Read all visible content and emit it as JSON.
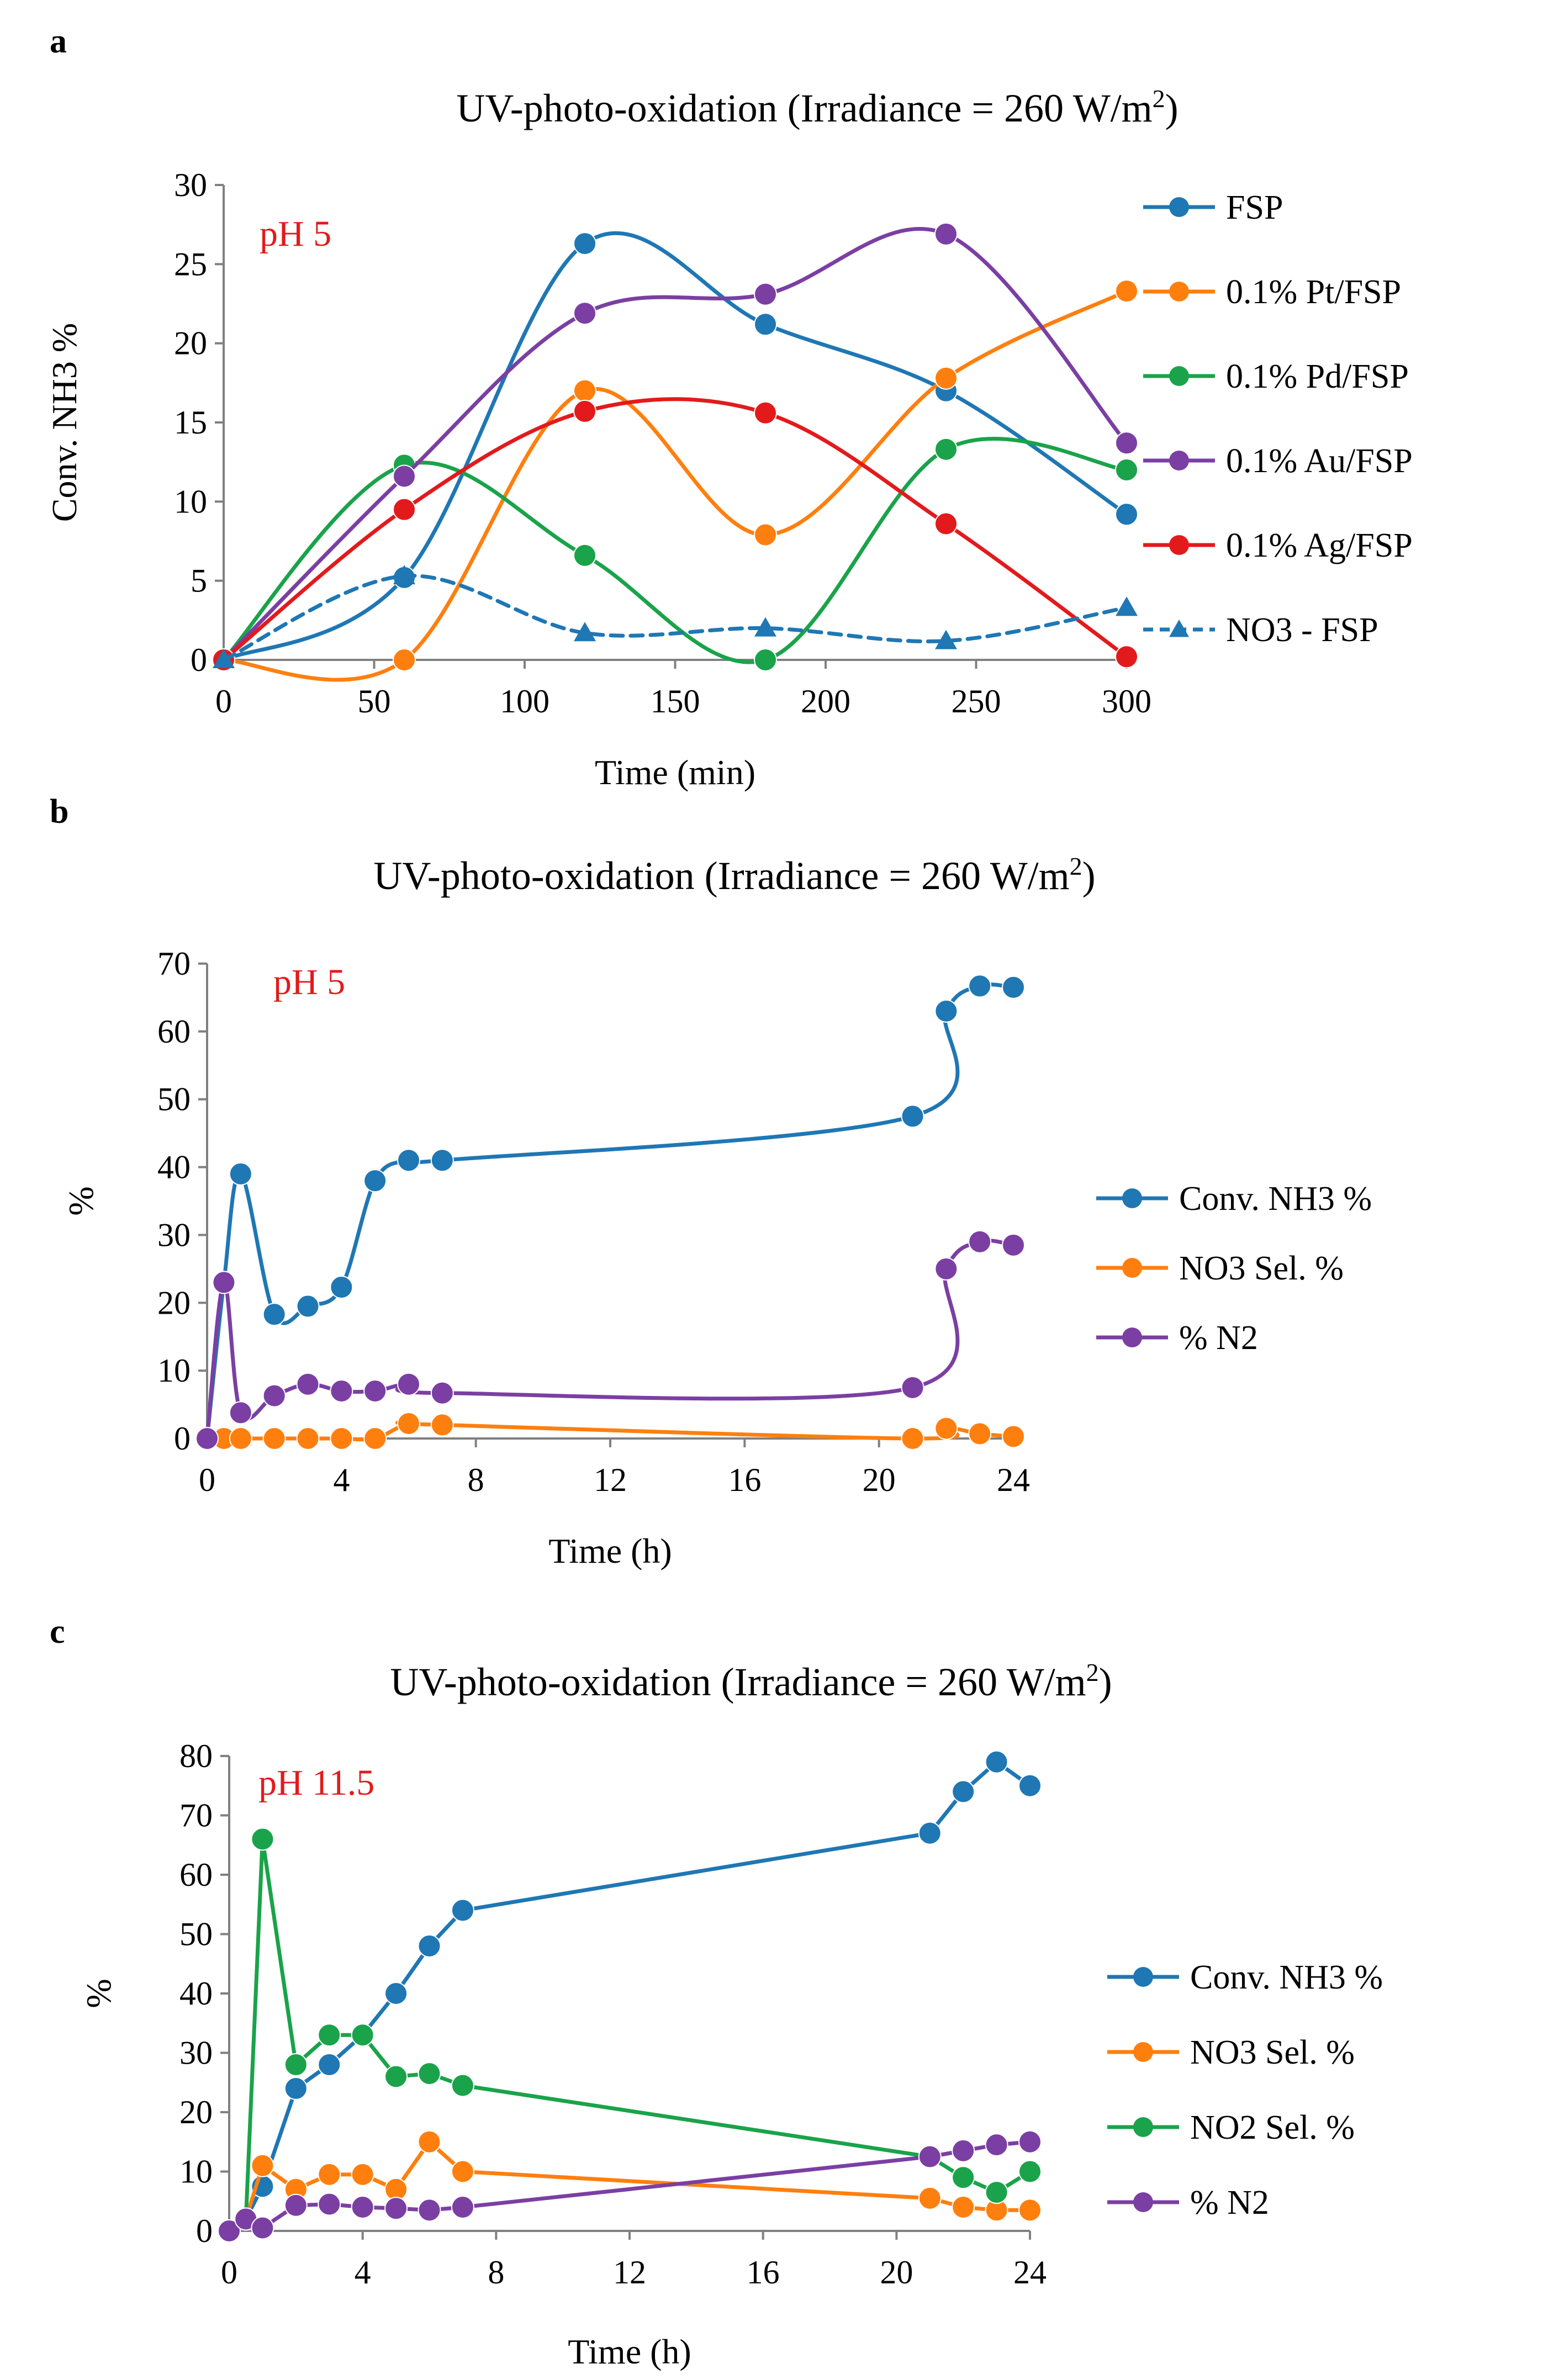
{
  "colors": {
    "blue": "#1f77b4",
    "orange": "#ff7f0e",
    "green": "#1aa34a",
    "purple": "#7b3fa3",
    "red": "#e31a1c",
    "axis": "#808080",
    "pH_label": "#e31a1c"
  },
  "chart_data": [
    {
      "panel": "a",
      "type": "line",
      "title_main": "UV-photo-oxidation (Irradiance = 260 W/m",
      "title_sup": "2",
      "title_end": ")",
      "annotation": "pH 5",
      "xlabel": "Time (min)",
      "ylabel": "Conv. NH3 %",
      "xlim": [
        0,
        300
      ],
      "ylim": [
        0,
        30
      ],
      "xticks": [
        0,
        50,
        100,
        150,
        200,
        250,
        300
      ],
      "yticks": [
        0,
        5,
        10,
        15,
        20,
        25,
        30
      ],
      "x": [
        0,
        60,
        120,
        180,
        240,
        300
      ],
      "legend_position": "right",
      "series": [
        {
          "name": "FSP",
          "color": "blue",
          "marker": "circle",
          "dashed": false,
          "values": [
            0,
            5.2,
            26.3,
            21.2,
            17.0,
            9.2
          ]
        },
        {
          "name": "0.1% Pt/FSP",
          "color": "orange",
          "marker": "circle",
          "dashed": false,
          "values": [
            0,
            0,
            17.0,
            7.9,
            17.8,
            23.3
          ]
        },
        {
          "name": "0.1% Pd/FSP",
          "color": "green",
          "marker": "circle",
          "dashed": false,
          "values": [
            0,
            12.3,
            6.6,
            0,
            13.3,
            12.0
          ]
        },
        {
          "name": "0.1% Au/FSP",
          "color": "purple",
          "marker": "circle",
          "dashed": false,
          "values": [
            0,
            11.6,
            21.9,
            23.1,
            26.9,
            13.7
          ]
        },
        {
          "name": "0.1% Ag/FSP",
          "color": "red",
          "marker": "circle",
          "dashed": false,
          "values": [
            0,
            9.5,
            15.7,
            15.6,
            8.6,
            0.2
          ]
        },
        {
          "name": "NO3 - FSP",
          "color": "blue",
          "marker": "triangle",
          "dashed": true,
          "values": [
            0,
            5.3,
            1.7,
            2.0,
            1.2,
            3.3
          ]
        }
      ]
    },
    {
      "panel": "b",
      "type": "line",
      "title_main": "UV-photo-oxidation (Irradiance = 260 W/m",
      "title_sup": "2",
      "title_end": ")",
      "annotation": "pH 5",
      "xlabel": "Time (h)",
      "ylabel": "%",
      "xlim": [
        0,
        24
      ],
      "ylim": [
        0,
        70
      ],
      "xticks": [
        0,
        4,
        8,
        12,
        16,
        20,
        24
      ],
      "yticks": [
        0,
        10,
        20,
        30,
        40,
        50,
        60,
        70
      ],
      "x": [
        0,
        0.5,
        1,
        2,
        3,
        4,
        5,
        6,
        7,
        21,
        22,
        23,
        24
      ],
      "legend_position": "right",
      "series": [
        {
          "name": "Conv. NH3 %",
          "color": "blue",
          "marker": "circle",
          "dashed": false,
          "values": [
            0,
            23,
            39,
            18.3,
            19.5,
            22.3,
            38,
            41,
            41,
            47.5,
            63,
            66.7,
            66.5
          ]
        },
        {
          "name": "NO3  Sel. %",
          "color": "orange",
          "marker": "circle",
          "dashed": false,
          "values": [
            0,
            0,
            0,
            0,
            0,
            0,
            0,
            2.2,
            2.0,
            0,
            1.5,
            0.7,
            0.3
          ]
        },
        {
          "name": "% N2",
          "color": "purple",
          "marker": "circle",
          "dashed": false,
          "values": [
            0,
            23,
            3.8,
            6.3,
            8.0,
            7.0,
            7.0,
            8.0,
            6.7,
            7.5,
            25,
            29,
            28.5
          ]
        }
      ]
    },
    {
      "panel": "c",
      "type": "line",
      "title_main": "UV-photo-oxidation (Irradiance = 260 W/m",
      "title_sup": "2",
      "title_end": ")",
      "annotation": "pH 11.5",
      "xlabel": "Time (h)",
      "ylabel": "%",
      "xlim": [
        0,
        24
      ],
      "ylim": [
        0,
        80
      ],
      "xticks": [
        0,
        4,
        8,
        12,
        16,
        20,
        24
      ],
      "yticks": [
        0,
        10,
        20,
        30,
        40,
        50,
        60,
        70,
        80
      ],
      "x": [
        0,
        0.5,
        1,
        2,
        3,
        4,
        5,
        6,
        7,
        21,
        22,
        23,
        24
      ],
      "legend_position": "right",
      "series": [
        {
          "name": "Conv. NH3 %",
          "color": "blue",
          "marker": "circle",
          "dashed": false,
          "values": [
            0,
            2,
            7.5,
            24,
            28,
            33,
            40,
            48,
            54,
            67,
            74,
            79,
            75
          ]
        },
        {
          "name": "NO3  Sel. %",
          "color": "orange",
          "marker": "circle",
          "dashed": false,
          "values": [
            0,
            2,
            11,
            7,
            9.5,
            9.5,
            7,
            15,
            10,
            5.5,
            4,
            3.5,
            3.5
          ]
        },
        {
          "name": "NO2  Sel. %",
          "color": "green",
          "marker": "circle",
          "dashed": false,
          "values": [
            0,
            2,
            66,
            28,
            33,
            33,
            26,
            26.5,
            24.5,
            12.5,
            9,
            6.5,
            10
          ]
        },
        {
          "name": "% N2",
          "color": "purple",
          "marker": "circle",
          "dashed": false,
          "values": [
            0,
            2,
            0.5,
            4.3,
            4.5,
            4,
            3.8,
            3.5,
            4,
            12.5,
            13.5,
            14.5,
            15
          ]
        }
      ]
    }
  ]
}
